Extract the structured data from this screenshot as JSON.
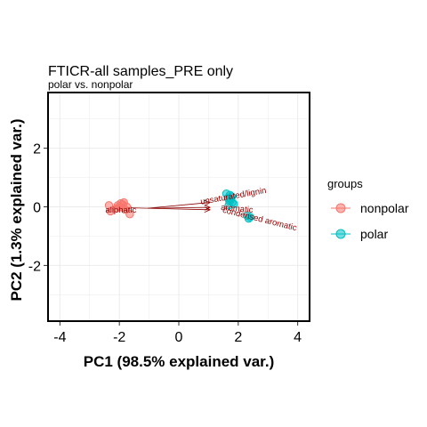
{
  "chart_data": {
    "type": "scatter",
    "title": "FTICR-all samples_PRE only",
    "subtitle": "polar vs. nonpolar",
    "xlabel": "PC1 (98.5% explained var.)",
    "ylabel": "PC2 (1.3% explained var.)",
    "xlim": [
      -4.4,
      4.4
    ],
    "ylim": [
      -3.9,
      3.9
    ],
    "xticks": [
      -4,
      -2,
      0,
      2,
      4
    ],
    "yticks": [
      -2,
      0,
      2
    ],
    "grid": true,
    "legend": {
      "title": "groups",
      "position": "right",
      "entries": [
        {
          "label": "nonpolar",
          "color": "#F8766D"
        },
        {
          "label": "polar",
          "color": "#00BFC4"
        }
      ]
    },
    "series": [
      {
        "name": "nonpolar",
        "color": "#F8766D",
        "points": [
          [
            -1.95,
            0.12
          ],
          [
            -1.88,
            0.08
          ],
          [
            -2.05,
            0.05
          ],
          [
            -1.9,
            -0.02
          ],
          [
            -2.1,
            -0.05
          ],
          [
            -1.8,
            -0.1
          ],
          [
            -1.75,
            0.0
          ],
          [
            -2.0,
            0.0
          ],
          [
            -2.35,
            0.05
          ],
          [
            -1.65,
            -0.25
          ],
          [
            -2.3,
            -0.15
          ],
          [
            -1.85,
            0.15
          ]
        ]
      },
      {
        "name": "polar",
        "color": "#00BFC4",
        "points": [
          [
            1.6,
            0.45
          ],
          [
            1.72,
            0.4
          ],
          [
            1.65,
            0.3
          ],
          [
            1.75,
            0.25
          ],
          [
            1.8,
            0.15
          ],
          [
            1.7,
            0.2
          ],
          [
            1.85,
            0.1
          ],
          [
            1.78,
            0.35
          ],
          [
            2.3,
            -0.3
          ],
          [
            2.4,
            -0.35
          ],
          [
            2.35,
            -0.4
          ],
          [
            1.68,
            0.05
          ]
        ]
      }
    ],
    "loadings": [
      {
        "label": "unsaturated/lignin",
        "end": [
          1.05,
          0.15
        ],
        "label_pos": [
          1.85,
          0.28
        ],
        "label_angle": -10
      },
      {
        "label": "aromatic",
        "end": [
          1.05,
          -0.02
        ],
        "label_pos": [
          1.95,
          -0.15
        ],
        "label_angle": 5
      },
      {
        "label": "condensed aromatic",
        "end": [
          1.05,
          -0.1
        ],
        "label_pos": [
          2.7,
          -0.5
        ],
        "label_angle": 14
      },
      {
        "label": "aliphatic",
        "end": [
          -2.2,
          -0.02
        ],
        "label_pos": [
          -1.95,
          -0.2
        ],
        "label_angle": 0
      }
    ],
    "arrow_origin": [
      -1.05,
      -0.05
    ],
    "arrow_color": "#8B0000"
  }
}
